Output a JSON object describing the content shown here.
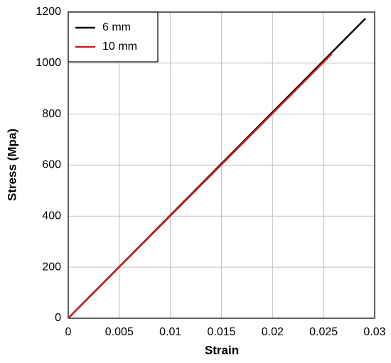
{
  "chart_data": {
    "type": "line",
    "xlabel": "Strain",
    "ylabel": "Stress (Mpa)",
    "xlim": [
      0,
      0.03
    ],
    "xticks": [
      0,
      0.005,
      0.01,
      0.015,
      0.02,
      0.025,
      0.03
    ],
    "ylim": [
      0,
      1200
    ],
    "yticks": [
      0,
      200,
      400,
      600,
      800,
      1000,
      1200
    ],
    "grid": true,
    "legend": "upper left",
    "series": [
      {
        "name": "6 mm",
        "color": "#000000",
        "x": [
          0,
          0.0291
        ],
        "values": [
          0,
          1175
        ]
      },
      {
        "name": "10 mm",
        "color": "#cc1f1f",
        "x": [
          0,
          0.0258
        ],
        "values": [
          0,
          1036
        ]
      }
    ]
  }
}
